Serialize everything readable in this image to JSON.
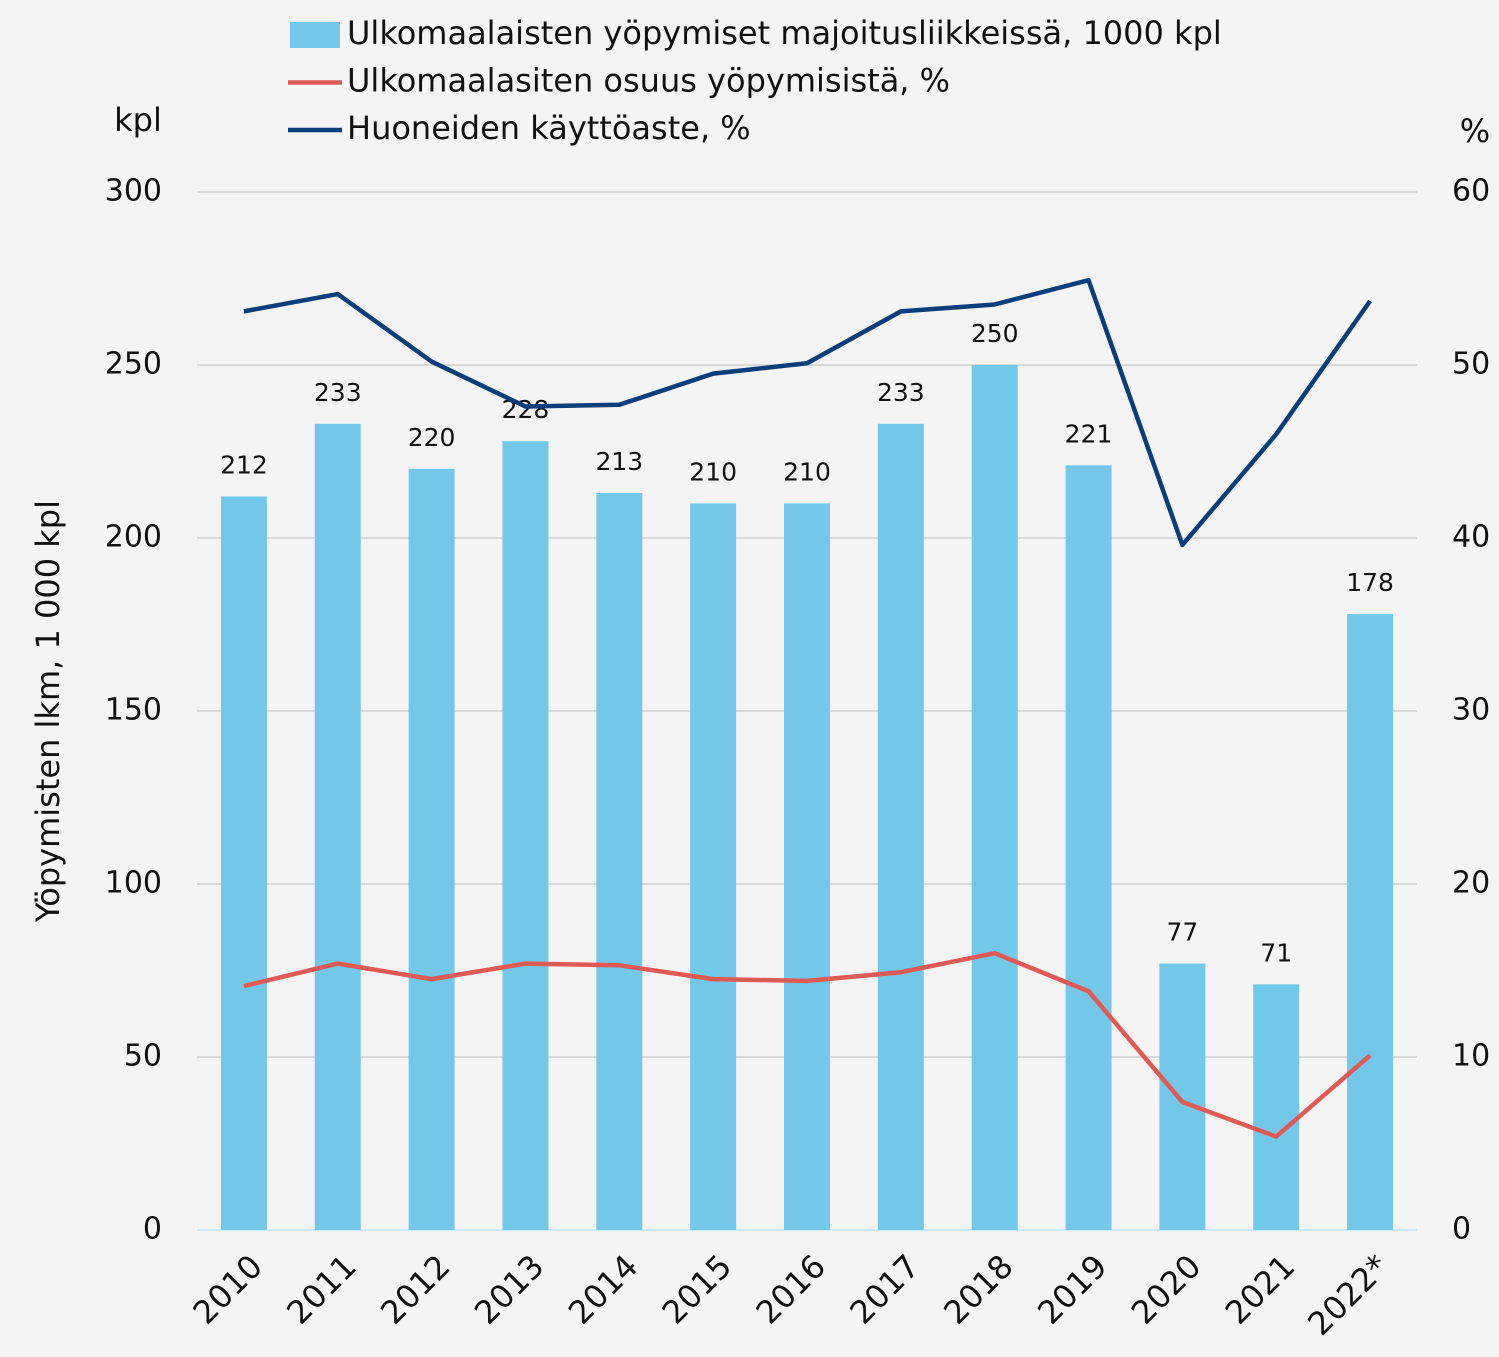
{
  "chart_data": {
    "type": "bar_line",
    "y_unit": "kpl",
    "y2_unit": "%",
    "ylabel": "Yöpymisten lkm, 1 000 kpl",
    "categories": [
      "2010",
      "2011",
      "2012",
      "2013",
      "2014",
      "2015",
      "2016",
      "2017",
      "2018",
      "2019",
      "2020",
      "2021",
      "2022*"
    ],
    "series": [
      {
        "name": "Ulkomaalaisten yöpymiset majoitusliikkeissä, 1000 kpl",
        "type": "bar",
        "color": "#73c8ea",
        "axis": "y",
        "values": [
          212,
          233,
          220,
          228,
          213,
          210,
          210,
          233,
          250,
          221,
          77,
          71,
          178
        ]
      },
      {
        "name": "Ulkomaalasiten osuus yöpymisistä, %",
        "type": "line",
        "color": "#e05a55",
        "axis": "y2",
        "values": [
          14.1,
          15.4,
          14.5,
          15.4,
          15.3,
          14.5,
          14.4,
          14.9,
          16.0,
          13.8,
          7.4,
          5.4,
          10.1
        ]
      },
      {
        "name": "Huoneiden käyttöaste, %",
        "type": "line",
        "color": "#0a3e7a",
        "axis": "y2",
        "values": [
          53.1,
          54.1,
          50.2,
          47.6,
          47.7,
          49.5,
          50.1,
          53.1,
          53.5,
          54.9,
          39.6,
          46.0,
          53.7
        ]
      }
    ],
    "ylim": [
      0,
      300
    ],
    "yticks": [
      0,
      50,
      100,
      150,
      200,
      250,
      300
    ],
    "y2lim": [
      0,
      60
    ],
    "y2ticks": [
      0,
      10,
      20,
      30,
      40,
      50,
      60
    ],
    "grid": true
  }
}
